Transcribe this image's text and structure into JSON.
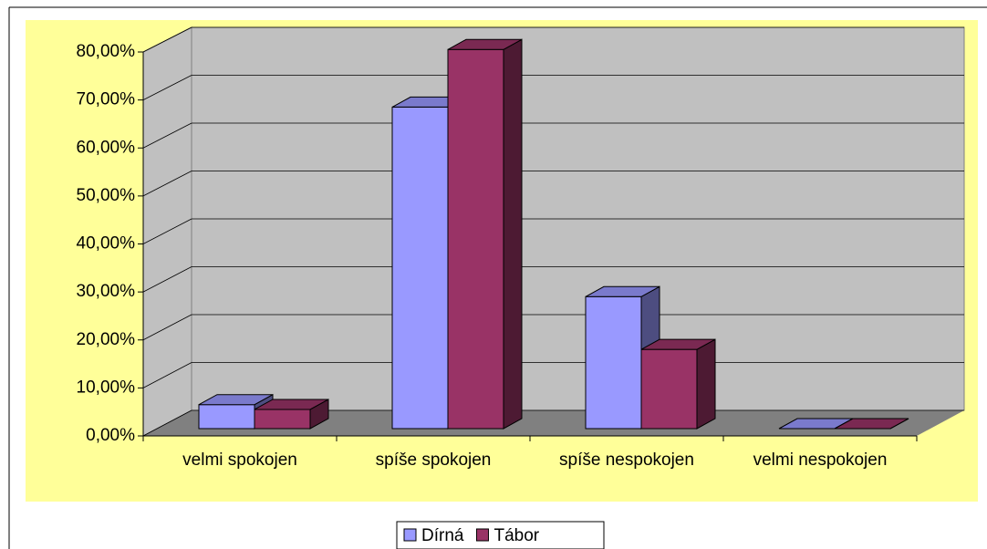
{
  "chart_data": {
    "type": "bar3d",
    "categories": [
      "velmi spokojen",
      "spíše spokojen",
      "spíše nespokojen",
      "velmi nespokojen"
    ],
    "series": [
      {
        "name": "Dírná",
        "color": "#9999ff",
        "values": [
          5,
          67,
          27.5,
          0
        ]
      },
      {
        "name": "Tábor",
        "color": "#993366",
        "values": [
          4,
          79,
          16.5,
          0
        ]
      }
    ],
    "ylim": [
      0,
      80
    ],
    "yticks": [
      {
        "value": 0,
        "label": "0,00%"
      },
      {
        "value": 10,
        "label": "10,00%"
      },
      {
        "value": 20,
        "label": "20,00%"
      },
      {
        "value": 30,
        "label": "30,00%"
      },
      {
        "value": 40,
        "label": "40,00%"
      },
      {
        "value": 50,
        "label": "50,00%"
      },
      {
        "value": 60,
        "label": "60,00%"
      },
      {
        "value": 70,
        "label": "70,00%"
      },
      {
        "value": 80,
        "label": "80,00%"
      }
    ],
    "grid": true,
    "legend": "bottom"
  }
}
